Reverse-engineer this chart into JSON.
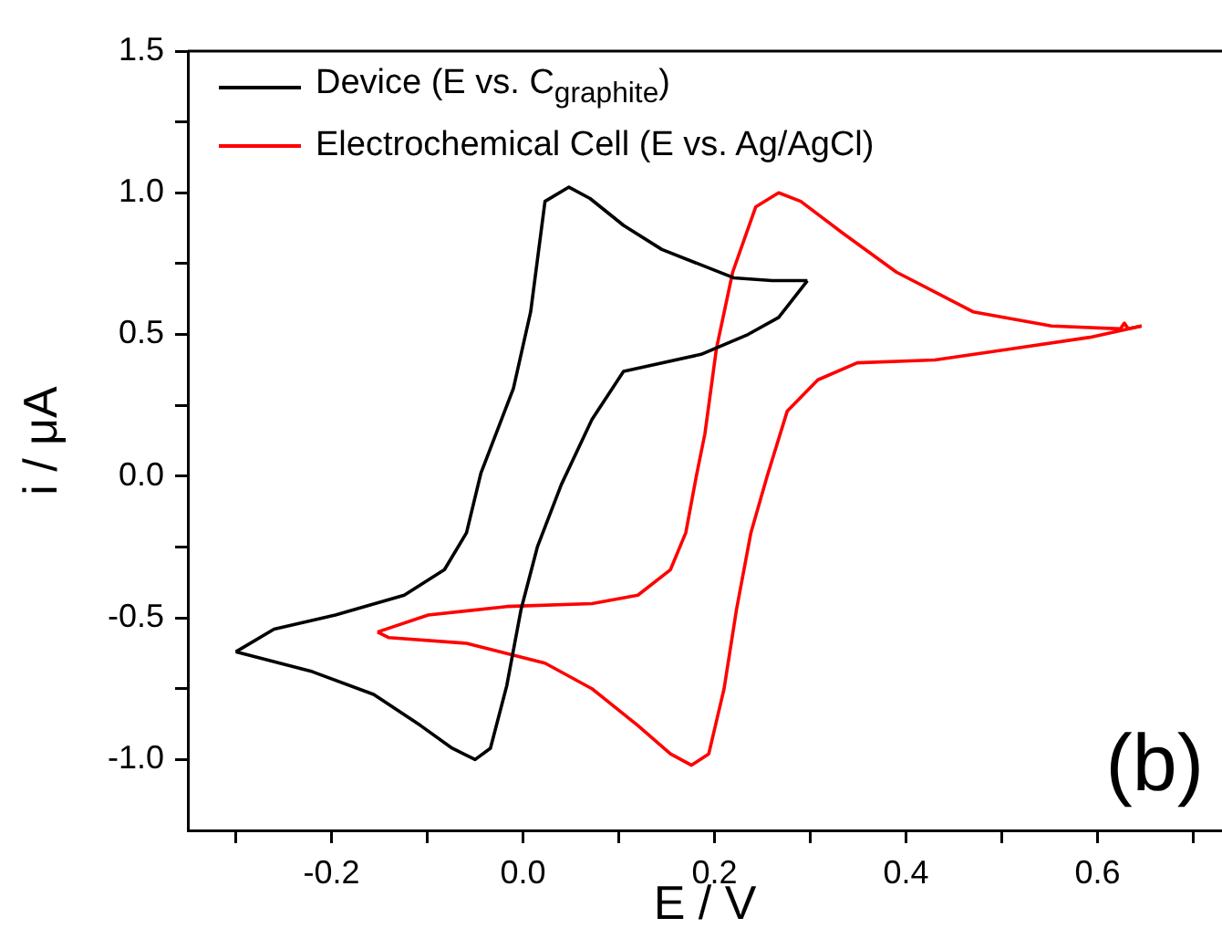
{
  "chart_data": {
    "type": "line",
    "xlabel": "E / V",
    "ylabel": "i / μA",
    "legend": "top left",
    "grid": false,
    "marker": "none",
    "line_style": "solid",
    "xlim": [
      -0.35,
      0.73
    ],
    "ylim": [
      -1.25,
      1.5
    ],
    "xticks": [
      {
        "value": -0.3,
        "label": null
      },
      {
        "value": -0.2,
        "label": "-0.2"
      },
      {
        "value": -0.1,
        "label": null
      },
      {
        "value": 0,
        "label": "0.0"
      },
      {
        "value": 0.1,
        "label": null
      },
      {
        "value": 0.2,
        "label": "0.2"
      },
      {
        "value": 0.3,
        "label": null
      },
      {
        "value": 0.4,
        "label": "0.4"
      },
      {
        "value": 0.5,
        "label": null
      },
      {
        "value": 0.6,
        "label": "0.6"
      },
      {
        "value": 0.7,
        "label": null
      }
    ],
    "yticks": [
      {
        "value": -1.0,
        "label": "-1.0"
      },
      {
        "value": -0.75,
        "label": null
      },
      {
        "value": -0.5,
        "label": "-0.5"
      },
      {
        "value": -0.25,
        "label": null
      },
      {
        "value": 0,
        "label": "0.0"
      },
      {
        "value": 0.25,
        "label": null
      },
      {
        "value": 0.5,
        "label": "0.5"
      },
      {
        "value": 0.75,
        "label": null
      },
      {
        "value": 1.0,
        "label": "1.0"
      },
      {
        "value": 1.25,
        "label": null
      },
      {
        "value": 1.5,
        "label": "1.5"
      }
    ],
    "annotations": [
      "(b)"
    ],
    "series": [
      {
        "name": "Device (E vs. C$_{graphite}$)",
        "color": "#000000",
        "x": [
          0.297,
          0.26,
          0.22,
          0.145,
          0.105,
          0.07,
          0.048,
          0.023,
          0.008,
          -0.01,
          -0.044,
          -0.059,
          -0.082,
          -0.124,
          -0.196,
          -0.26,
          -0.3
        ],
        "values": [
          0.69,
          0.69,
          0.7,
          0.8,
          0.885,
          0.98,
          1.02,
          0.97,
          0.58,
          0.31,
          0.01,
          -0.2,
          -0.33,
          -0.42,
          -0.49,
          -0.54,
          -0.62
        ]
      },
      {
        "color": "#000000",
        "x": [
          -0.3,
          -0.22,
          -0.156,
          -0.107,
          -0.074,
          -0.05,
          -0.034,
          -0.017,
          -0.002,
          0.015,
          0.04,
          0.072,
          0.105,
          0.186,
          0.235,
          0.267,
          0.297
        ],
        "values": [
          -0.62,
          -0.69,
          -0.77,
          -0.88,
          -0.96,
          -1.0,
          -0.96,
          -0.74,
          -0.47,
          -0.25,
          -0.03,
          0.2,
          0.37,
          0.43,
          0.5,
          0.56,
          0.69
        ]
      },
      {
        "name": "Electrochemical Cell (E vs. Ag/AgCl)",
        "color": "#ff0000",
        "x": [
          0.646,
          0.632,
          0.628,
          0.624,
          0.552,
          0.47,
          0.39,
          0.333,
          0.29,
          0.267,
          0.243,
          0.219,
          0.202,
          0.19,
          0.181,
          0.17,
          0.154,
          0.12,
          0.072,
          -0.017,
          -0.099,
          -0.152
        ],
        "values": [
          0.53,
          0.52,
          0.54,
          0.52,
          0.53,
          0.58,
          0.72,
          0.86,
          0.97,
          1.0,
          0.95,
          0.72,
          0.45,
          0.15,
          0.0,
          -0.2,
          -0.33,
          -0.42,
          -0.45,
          -0.46,
          -0.49,
          -0.55
        ]
      },
      {
        "color": "#ff0000",
        "x": [
          -0.152,
          -0.14,
          -0.059,
          0.023,
          0.072,
          0.12,
          0.154,
          0.176,
          0.194,
          0.21,
          0.223,
          0.238,
          0.255,
          0.276,
          0.308,
          0.349,
          0.43,
          0.512,
          0.592,
          0.646
        ],
        "values": [
          -0.55,
          -0.57,
          -0.59,
          -0.66,
          -0.75,
          -0.88,
          -0.98,
          -1.02,
          -0.98,
          -0.75,
          -0.47,
          -0.2,
          0.0,
          0.23,
          0.34,
          0.4,
          0.41,
          0.45,
          0.49,
          0.53
        ]
      }
    ]
  }
}
